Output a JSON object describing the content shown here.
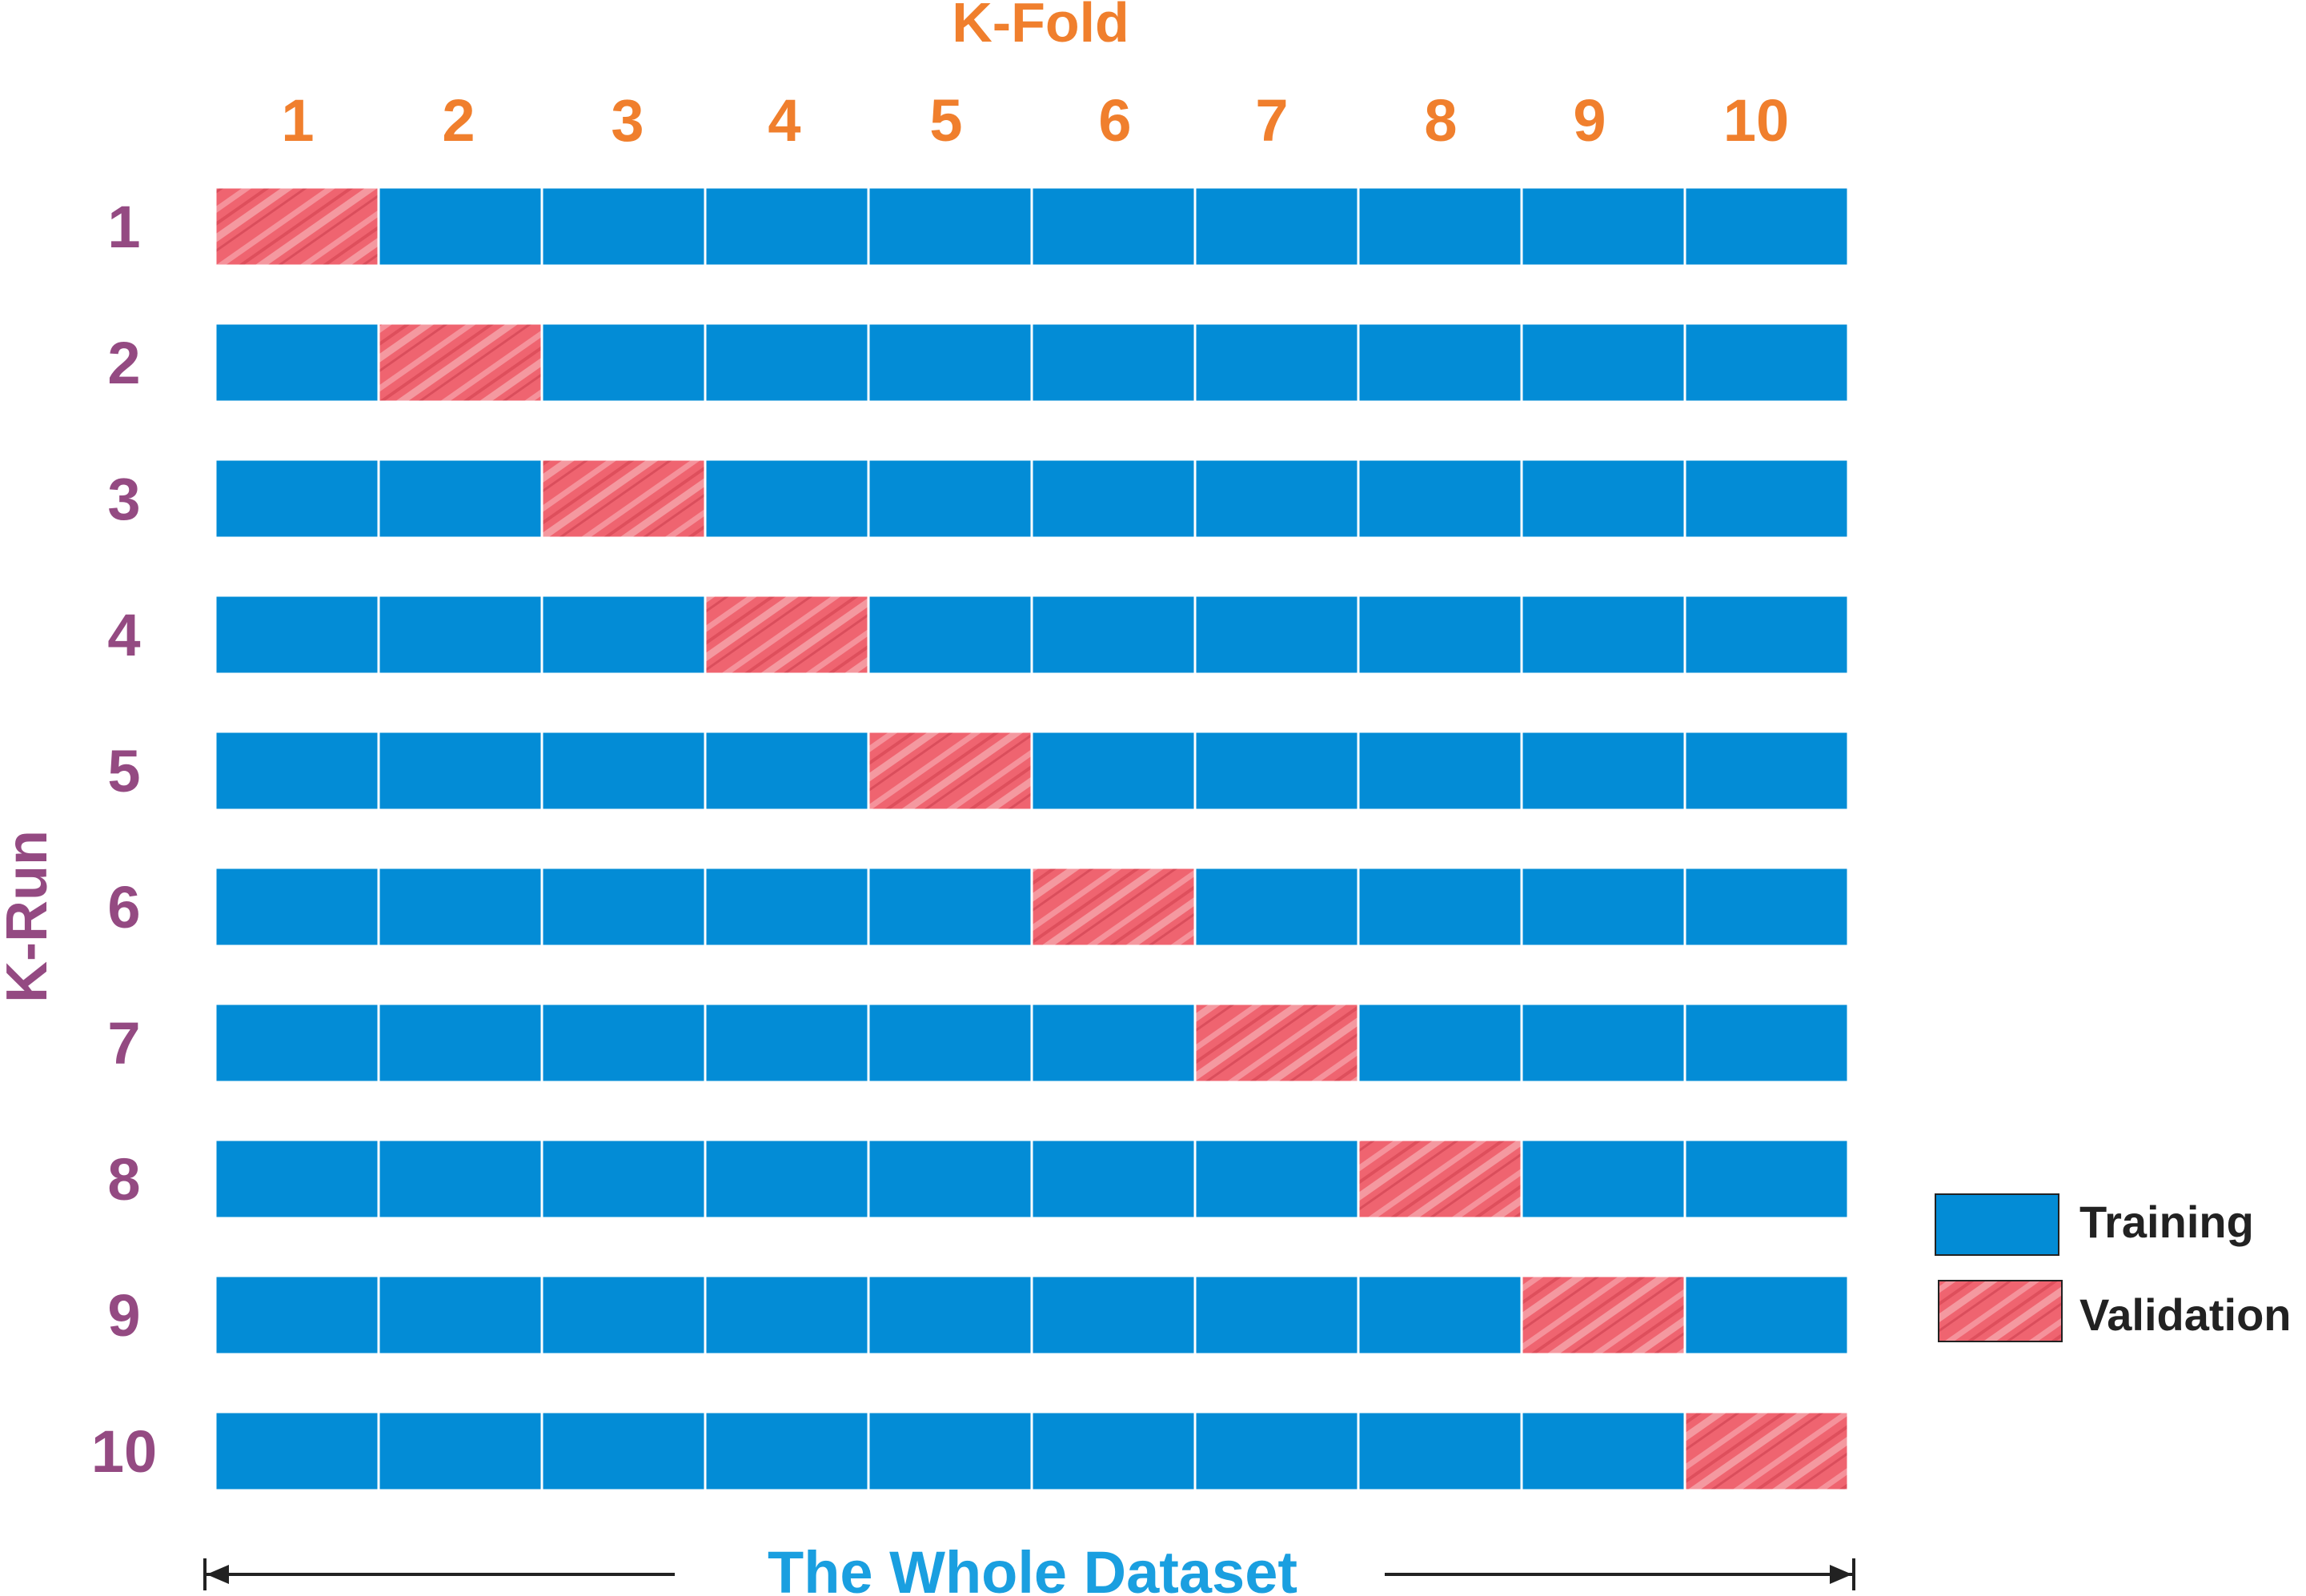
{
  "title": "K-Fold",
  "y_axis_label": "K-Run",
  "fold_labels": [
    "1",
    "2",
    "3",
    "4",
    "5",
    "6",
    "7",
    "8",
    "9",
    "10"
  ],
  "run_labels": [
    "1",
    "2",
    "3",
    "4",
    "5",
    "6",
    "7",
    "8",
    "9",
    "10"
  ],
  "validation_fold_per_run": [
    1,
    2,
    3,
    4,
    5,
    6,
    7,
    8,
    9,
    10
  ],
  "legend": {
    "training_label": "Training",
    "validation_label": "Validation"
  },
  "bottom_label": "The Whole Dataset",
  "colors": {
    "title": "#f07f2d",
    "fold_numbers": "#f07f2d",
    "run_numbers": "#944a82",
    "y_axis_label": "#944a82",
    "training_fill": "#038cd6",
    "validation_fill": "#ef6470",
    "validation_light": "#f7a4aa",
    "validation_dark": "#d94a58",
    "bottom_label": "#1a9fe0",
    "legend_text": "#222222",
    "arrow": "#222222"
  }
}
